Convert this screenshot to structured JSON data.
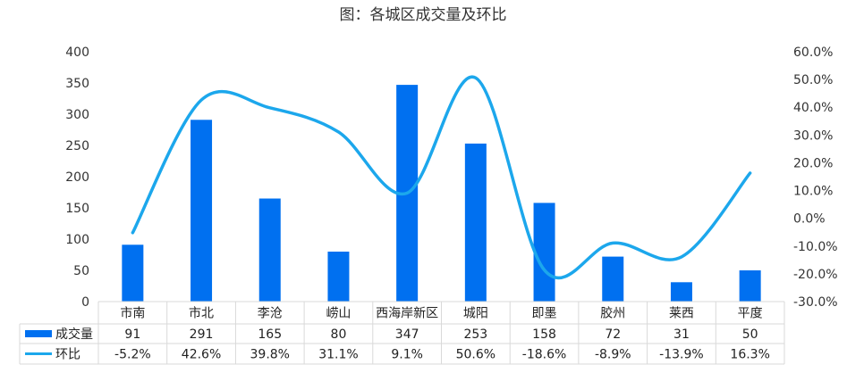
{
  "chart_data": {
    "type": "bar",
    "title": "图：各城区成交量及环比",
    "categories": [
      "市南",
      "市北",
      "李沧",
      "崂山",
      "西海岸新区",
      "城阳",
      "即墨",
      "胶州",
      "莱西",
      "平度"
    ],
    "series": [
      {
        "name": "成交量",
        "type": "bar",
        "axis": "left",
        "color": "#0070f0",
        "values": [
          91,
          291,
          165,
          80,
          347,
          253,
          158,
          72,
          31,
          50
        ],
        "labels": [
          "91",
          "291",
          "165",
          "80",
          "347",
          "253",
          "158",
          "72",
          "31",
          "50"
        ]
      },
      {
        "name": "环比",
        "type": "line",
        "axis": "right",
        "smooth": true,
        "color": "#1ca7ec",
        "values": [
          -5.2,
          42.6,
          39.8,
          31.1,
          9.1,
          50.6,
          -18.6,
          -8.9,
          -13.9,
          16.3
        ],
        "labels": [
          "-5.2%",
          "42.6%",
          "39.8%",
          "31.1%",
          "9.1%",
          "50.6%",
          "-18.6%",
          "-8.9%",
          "-13.9%",
          "16.3%"
        ]
      }
    ],
    "y_left": {
      "min": 0,
      "max": 400,
      "ticks": [
        "0",
        "50",
        "100",
        "150",
        "200",
        "250",
        "300",
        "350",
        "400"
      ]
    },
    "y_right": {
      "min": -30,
      "max": 60,
      "ticks": [
        "-30.0%",
        "-20.0%",
        "-10.0%",
        "0.0%",
        "10.0%",
        "20.0%",
        "30.0%",
        "40.0%",
        "50.0%",
        "60.0%"
      ]
    },
    "grid": false,
    "legend": "data-table"
  }
}
